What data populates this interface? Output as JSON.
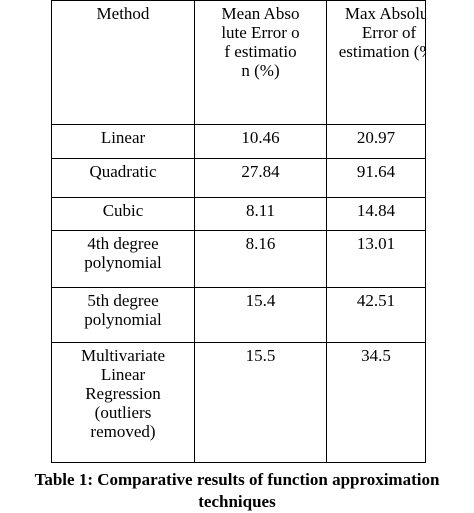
{
  "table": {
    "headers": {
      "method": "Method",
      "mean": "Mean Absolute Error of estimation (%)",
      "max": "Max Absolut Error of estimation (%)"
    },
    "rows": [
      {
        "method": "Linear",
        "mean": "10.46",
        "max": "20.97"
      },
      {
        "method": "Quadratic",
        "mean": "27.84",
        "max": "91.64"
      },
      {
        "method": "Cubic",
        "mean": "8.11",
        "max": "14.84"
      },
      {
        "method": "4th degree polynomial",
        "mean": "8.16",
        "max": "13.01"
      },
      {
        "method": "5th degree polynomial",
        "mean": "15.4",
        "max": "42.51"
      },
      {
        "method": "Multivariate Linear Regression (outliers removed)",
        "mean": "15.5",
        "max": "34.5"
      }
    ]
  },
  "caption": {
    "line1": "Table 1:  Comparative results of function approximation",
    "line2": "techniques"
  }
}
